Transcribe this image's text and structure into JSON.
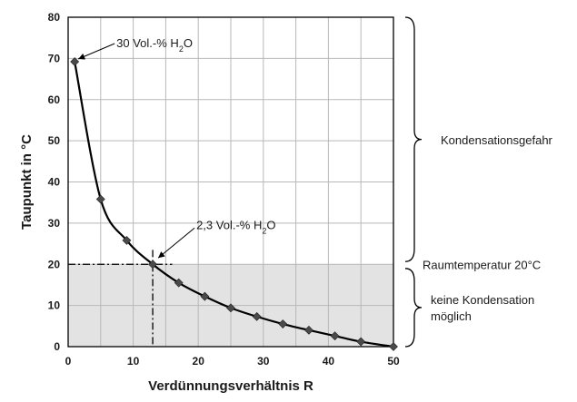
{
  "chart_data": {
    "type": "line",
    "xlabel": "Verdünnungsverhältnis R",
    "ylabel": "Taupunkt in °C",
    "xlim": [
      0,
      50
    ],
    "ylim": [
      0,
      80
    ],
    "xticks": [
      0,
      10,
      20,
      30,
      40,
      50
    ],
    "yticks": [
      0,
      10,
      20,
      30,
      40,
      50,
      60,
      70,
      80
    ],
    "grid": true,
    "series": [
      {
        "x": [
          1,
          5,
          9,
          13,
          17,
          21,
          25,
          29,
          33,
          37,
          41,
          45,
          50
        ],
        "y": [
          69.2,
          35.8,
          25.8,
          20,
          15.5,
          12.2,
          9.4,
          7.3,
          5.5,
          4,
          2.6,
          1.2,
          0
        ],
        "color": "#000000"
      }
    ],
    "shaded_region": {
      "y_from": 0,
      "y_to": 20,
      "color": "#e3e3e3"
    },
    "room_temp_line": {
      "y": 20,
      "x_to": 16
    },
    "marker_point": {
      "x": 13,
      "y": 20
    },
    "annotations": [
      {
        "label": "30 Vol.-% H",
        "sub": "2",
        "suffix": "O",
        "x": 1,
        "y": 69.2
      },
      {
        "label": "2,3 Vol.-% H",
        "sub": "2",
        "suffix": "O",
        "x": 13,
        "y": 20
      }
    ],
    "brackets": [
      {
        "label": "Kondensationsgefahr",
        "y_from": 20,
        "y_to": 80
      },
      {
        "label": "keine Kondensation",
        "label2": "möglich",
        "y_from": 0,
        "y_to": 19
      }
    ],
    "side_label": "Raumtemperatur 20°C"
  }
}
